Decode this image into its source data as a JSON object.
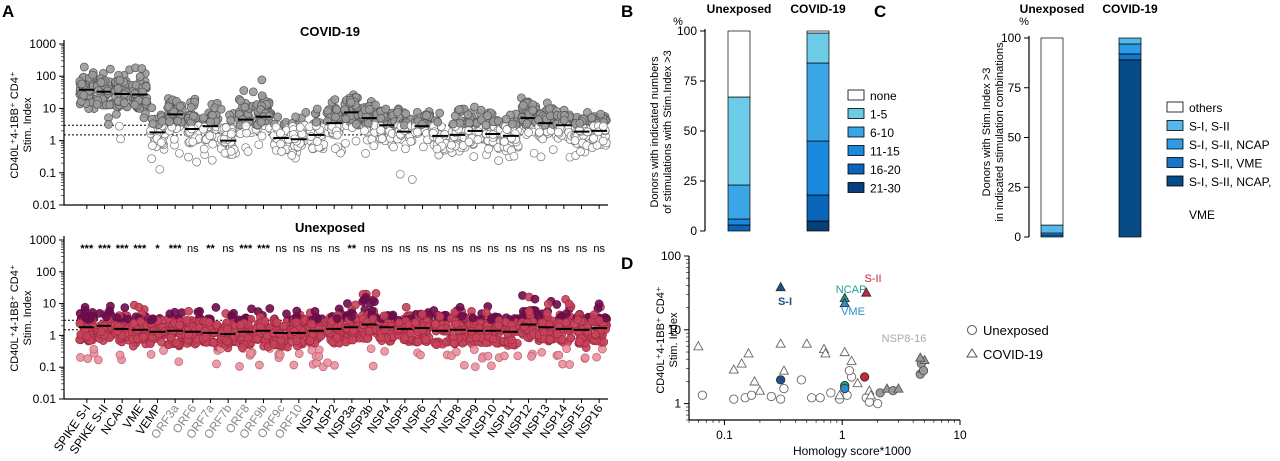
{
  "panel_labels": {
    "A": "A",
    "B": "B",
    "C": "C",
    "D": "D"
  },
  "panelA": {
    "categories": [
      "SPIKE S-I",
      "SPIKE S-II",
      "NCAP",
      "VME",
      "VEMP",
      "ORF3a",
      "ORF6",
      "ORF7a",
      "ORF7b",
      "ORF8",
      "ORF9b",
      "ORF9c",
      "ORF10",
      "NSP1",
      "NSP2",
      "NSP3a",
      "NSP3b",
      "NSP4",
      "NSP5",
      "NSP6",
      "NSP7",
      "NSP8",
      "NSP9",
      "NSP10",
      "NSP11",
      "NSP12",
      "NSP13",
      "NSP14",
      "NSP15",
      "NSP16"
    ],
    "categories_grey": [
      "ORF3a",
      "ORF6",
      "ORF7a",
      "ORF7b",
      "ORF8",
      "ORF9b",
      "ORF9c",
      "ORF10"
    ],
    "significance": [
      "***",
      "***",
      "***",
      "***",
      "*",
      "***",
      "ns",
      "**",
      "ns",
      "***",
      "***",
      "ns",
      "ns",
      "ns",
      "ns",
      "**",
      "ns",
      "ns",
      "ns",
      "ns",
      "ns",
      "ns",
      "ns",
      "ns",
      "ns",
      "ns",
      "ns",
      "ns",
      "ns",
      "ns"
    ],
    "ylabel_line1": "CD40L⁺4-1BB⁺ CD4⁺",
    "ylabel_line2": "Stim. Index",
    "yticks": [
      "1000",
      "100",
      "10",
      "1",
      "0.1",
      "0.01"
    ],
    "top_title": "COVID-19",
    "bottom_title": "Unexposed",
    "threshold_upper": 3,
    "threshold_lower": 1.5,
    "colors": {
      "covid_fill": "#9a9a9a",
      "covid_open": "#ffffff",
      "unexp_fill": "#c8425a",
      "unexp_dark": "#6a0d4a",
      "unexp_light": "#e8909c"
    }
  },
  "chart_data": [
    {
      "type": "scatter",
      "title": "COVID-19",
      "ylabel": "CD40L⁺4-1BB⁺ CD4⁺ Stim. Index",
      "yscale": "log",
      "ylim": [
        0.01,
        1000
      ],
      "categories": [
        "SPIKE S-I",
        "SPIKE S-II",
        "NCAP",
        "VME",
        "VEMP",
        "ORF3a",
        "ORF6",
        "ORF7a",
        "ORF7b",
        "ORF8",
        "ORF9b",
        "ORF9c",
        "ORF10",
        "NSP1",
        "NSP2",
        "NSP3a",
        "NSP3b",
        "NSP4",
        "NSP5",
        "NSP6",
        "NSP7",
        "NSP8",
        "NSP9",
        "NSP10",
        "NSP11",
        "NSP12",
        "NSP13",
        "NSP14",
        "NSP15",
        "NSP16"
      ],
      "medians": [
        38,
        33,
        28,
        27,
        1.8,
        6.5,
        2.3,
        2.8,
        1.0,
        4.5,
        5.5,
        1.2,
        1.1,
        1.5,
        3.5,
        7.5,
        5.0,
        3.0,
        1.9,
        2.8,
        1.4,
        1.5,
        2.0,
        1.6,
        1.4,
        5.0,
        3.5,
        3.0,
        1.9,
        2.0
      ],
      "max": [
        200,
        250,
        180,
        200,
        20,
        30,
        20,
        15,
        10,
        40,
        90,
        8,
        8,
        20,
        25,
        45,
        30,
        25,
        10,
        15,
        8,
        10,
        15,
        8,
        8,
        25,
        20,
        12,
        8,
        7
      ],
      "min": [
        5,
        3,
        1,
        5,
        0.1,
        0.4,
        0.2,
        0.2,
        0.2,
        0.4,
        0.3,
        0.3,
        0.2,
        0.4,
        0.4,
        0.8,
        0.4,
        0.4,
        0.06,
        0.2,
        0.3,
        0.3,
        0.3,
        0.2,
        0.3,
        0.3,
        0.3,
        0.3,
        0.3,
        0.3
      ]
    },
    {
      "type": "scatter",
      "title": "Unexposed",
      "ylabel": "CD40L⁺4-1BB⁺ CD4⁺ Stim. Index",
      "yscale": "log",
      "ylim": [
        0.01,
        1000
      ],
      "categories": [
        "SPIKE S-I",
        "SPIKE S-II",
        "NCAP",
        "VME",
        "VEMP",
        "ORF3a",
        "ORF6",
        "ORF7a",
        "ORF7b",
        "ORF8",
        "ORF9b",
        "ORF9c",
        "ORF10",
        "NSP1",
        "NSP2",
        "NSP3a",
        "NSP3b",
        "NSP4",
        "NSP5",
        "NSP6",
        "NSP7",
        "NSP8",
        "NSP9",
        "NSP10",
        "NSP11",
        "NSP12",
        "NSP13",
        "NSP14",
        "NSP15",
        "NSP16"
      ],
      "medians": [
        1.8,
        2.0,
        1.6,
        1.5,
        1.3,
        1.4,
        1.3,
        1.2,
        1.1,
        1.3,
        1.4,
        1.2,
        1.2,
        1.4,
        1.6,
        1.8,
        2.2,
        1.8,
        1.6,
        1.7,
        1.4,
        1.5,
        1.4,
        1.4,
        1.3,
        2.2,
        1.8,
        1.6,
        1.5,
        1.7
      ],
      "max": [
        10,
        10,
        8,
        10,
        6,
        8,
        6,
        8,
        5,
        8,
        10,
        6,
        6,
        6,
        10,
        12,
        30,
        18,
        12,
        10,
        8,
        8,
        8,
        10,
        6,
        20,
        12,
        15,
        8,
        10
      ],
      "min": [
        0.1,
        0.1,
        0.1,
        0.1,
        0.1,
        0.1,
        0.1,
        0.1,
        0.1,
        0.1,
        0.1,
        0.1,
        0.1,
        0.1,
        0.1,
        0.1,
        0.1,
        0.1,
        0.1,
        0.1,
        0.1,
        0.1,
        0.1,
        0.1,
        0.1,
        0.1,
        0.1,
        0.1,
        0.1,
        0.1
      ]
    },
    {
      "type": "bar",
      "stacked": true,
      "title": "",
      "ylabel": "Donors with indicated numbers of stimulations with Stim.Index >3",
      "yunit": "%",
      "ylim": [
        0,
        100
      ],
      "categories": [
        "Unexposed",
        "COVID-19"
      ],
      "series": [
        {
          "name": "none",
          "values": [
            33,
            1
          ],
          "color": "#ffffff"
        },
        {
          "name": "1-5",
          "values": [
            44,
            15
          ],
          "color": "#6ccbe6"
        },
        {
          "name": "6-10",
          "values": [
            17,
            39
          ],
          "color": "#3aa6e6"
        },
        {
          "name": "11-15",
          "values": [
            3,
            27
          ],
          "color": "#1a88dc"
        },
        {
          "name": "16-20",
          "values": [
            3,
            13
          ],
          "color": "#0a64b8"
        },
        {
          "name": "21-30",
          "values": [
            0,
            5
          ],
          "color": "#063f7a"
        }
      ]
    },
    {
      "type": "bar",
      "stacked": true,
      "title": "",
      "ylabel": "Donors with Stim.Index >3 in indicated stimulation combinations",
      "yunit": "%",
      "ylim": [
        0,
        100
      ],
      "categories": [
        "Unexposed",
        "COVID-19"
      ],
      "series": [
        {
          "name": "others",
          "values": [
            94,
            0
          ],
          "color": "#ffffff"
        },
        {
          "name": "S-I, S-II",
          "values": [
            4,
            3
          ],
          "color": "#58b7ea"
        },
        {
          "name": "S-I, S-II, NCAP",
          "values": [
            1,
            5
          ],
          "color": "#2a9be6"
        },
        {
          "name": "S-I, S-II, VME",
          "values": [
            1,
            3
          ],
          "color": "#1576c8"
        },
        {
          "name": "S-I, S-II, NCAP, VME",
          "values": [
            0,
            89
          ],
          "color": "#064a86"
        }
      ]
    },
    {
      "type": "scatter",
      "title": "",
      "xlabel": "Homology score*1000",
      "ylabel": "CD40L⁺4-1BB⁺ CD4⁺ Stim. Index",
      "xscale": "log",
      "yscale": "log",
      "xlim": [
        0.05,
        10
      ],
      "ylim": [
        0.6,
        100
      ],
      "series": [
        {
          "name": "Unexposed",
          "marker": "circle",
          "points": [
            [
              0.065,
              1.3
            ],
            [
              0.12,
              1.15
            ],
            [
              0.15,
              1.2
            ],
            [
              0.17,
              1.3
            ],
            [
              0.25,
              1.25
            ],
            [
              0.3,
              1.15
            ],
            [
              0.32,
              1.6
            ],
            [
              0.45,
              2.1
            ],
            [
              0.55,
              1.2
            ],
            [
              0.65,
              1.2
            ],
            [
              0.8,
              1.4
            ],
            [
              0.95,
              1.15
            ],
            [
              1.1,
              1.3
            ],
            [
              1.2,
              2.3
            ],
            [
              1.15,
              2.8
            ],
            [
              1.6,
              1.2
            ],
            [
              1.7,
              1.05
            ],
            [
              2.0,
              1.0
            ]
          ]
        },
        {
          "name": "COVID-19",
          "marker": "triangle",
          "points": [
            [
              0.06,
              6
            ],
            [
              0.12,
              2.9
            ],
            [
              0.14,
              3.5
            ],
            [
              0.16,
              4.8
            ],
            [
              0.18,
              2.0
            ],
            [
              0.2,
              1.5
            ],
            [
              0.3,
              6.5
            ],
            [
              0.32,
              2.8
            ],
            [
              0.5,
              6.5
            ],
            [
              0.7,
              5.5
            ],
            [
              0.72,
              4.8
            ],
            [
              0.95,
              1.3
            ],
            [
              1.05,
              5.0
            ],
            [
              1.2,
              3.8
            ],
            [
              1.35,
              1.9
            ],
            [
              1.7,
              1.5
            ],
            [
              1.75,
              1.3
            ]
          ]
        },
        {
          "name": "NSP8-16",
          "marker": "filled",
          "points": [
            [
              2.1,
              1.4
            ],
            [
              2.4,
              1.6
            ],
            [
              2.7,
              1.5
            ],
            [
              3.0,
              1.6
            ],
            [
              4.6,
              2.5
            ],
            [
              4.8,
              3.0
            ],
            [
              4.7,
              3.5
            ],
            [
              5.0,
              3.9
            ],
            [
              4.9,
              2.8
            ],
            [
              4.6,
              4.2
            ]
          ]
        }
      ],
      "highlights": [
        {
          "name": "S-I",
          "covid": [
            0.3,
            38
          ],
          "unexposed": [
            0.3,
            2.1
          ]
        },
        {
          "name": "S-II",
          "covid": [
            1.6,
            32
          ],
          "unexposed": [
            1.55,
            2.3
          ]
        },
        {
          "name": "NCAP",
          "covid": [
            1.05,
            27
          ],
          "unexposed": [
            1.05,
            1.75
          ]
        },
        {
          "name": "VME",
          "covid": [
            1.05,
            23
          ],
          "unexposed": [
            1.05,
            1.6
          ]
        }
      ],
      "xticks": [
        "0.1",
        "1",
        "10"
      ],
      "yticks": [
        "100",
        "10",
        "1"
      ]
    }
  ],
  "panelB": {
    "ylabel_line1": "Donors with indicated numbers",
    "ylabel_line2": "of stimulations with Stim.Index >3",
    "unit": "%",
    "col_labels": [
      "Unexposed",
      "COVID-19"
    ],
    "yticks": [
      "100",
      "75",
      "50",
      "25",
      "0"
    ],
    "legend": [
      "none",
      "1-5",
      "6-10",
      "11-15",
      "16-20",
      "21-30"
    ]
  },
  "panelC": {
    "ylabel_line1": "Donors with Stim.Index >3",
    "ylabel_line2": "in indicated stimulation combinations",
    "unit": "%",
    "col_labels": [
      "Unexposed",
      "COVID-19"
    ],
    "yticks": [
      "100",
      "75",
      "50",
      "25",
      "0"
    ],
    "legend": [
      "others",
      "S-I, S-II",
      "S-I, S-II, NCAP",
      "S-I, S-II, VME",
      "S-I, S-II, NCAP,"
    ],
    "legend_cont": "VME"
  },
  "panelD": {
    "ylabel_line1": "CD40L⁺4-1BB⁺ CD4⁺",
    "ylabel_line2": "Stim. Index",
    "xlabel": "Homology score*1000",
    "legend": [
      "Unexposed",
      "COVID-19"
    ],
    "annotations": {
      "si": "S-I",
      "sii": "S-II",
      "ncap": "NCAP",
      "vme": "VME",
      "nsp": "NSP8-16"
    },
    "annotation_colors": {
      "si": "#1d4f8c",
      "sii": "#c8243a",
      "ncap": "#1aa090",
      "vme": "#2a8ec8",
      "nsp": "#a8a8a8"
    }
  }
}
